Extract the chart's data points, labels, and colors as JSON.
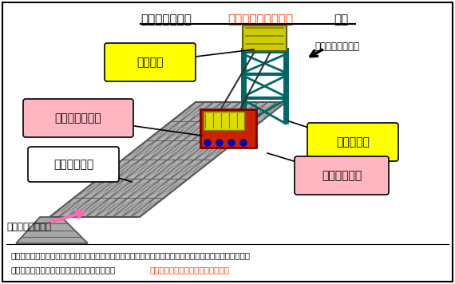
{
  "bg_color": "#ffffff",
  "title_black1": "【新搭入方法（",
  "title_red": "上階から搭入の場合",
  "title_black2": "）】",
  "crane_label": "揚重装置",
  "truss_label": "新製トラス組品",
  "existing_label": "既設フレーム",
  "gate_label": "専用門形履",
  "roller_label": "走行ローラー",
  "frame_dir": "フレーム搭入方向",
  "desc1": "　既設フレーム以外のすべての部品を撤去した後、専用門型履を設置し、既設フレームの上で、走行用ロー",
  "desc2": "ラーを備えたトラス組品を走行させ、搭入する",
  "desc2_red": "（上下階どちらからでも搭入可能）",
  "yellow": "#ffff00",
  "pink": "#ffb6c1",
  "white": "#ffffff",
  "teal": "#008080",
  "black": "#000000",
  "red_text": "#ff3300",
  "magenta_arrow": "#ff69b4",
  "gray_bridge": "#b0b0b0",
  "dark_gray": "#505050",
  "cart_red": "#cc2200",
  "cargo_yellow": "#dddd00",
  "crane_yellow": "#cccc00",
  "cable_dark": "#303030"
}
